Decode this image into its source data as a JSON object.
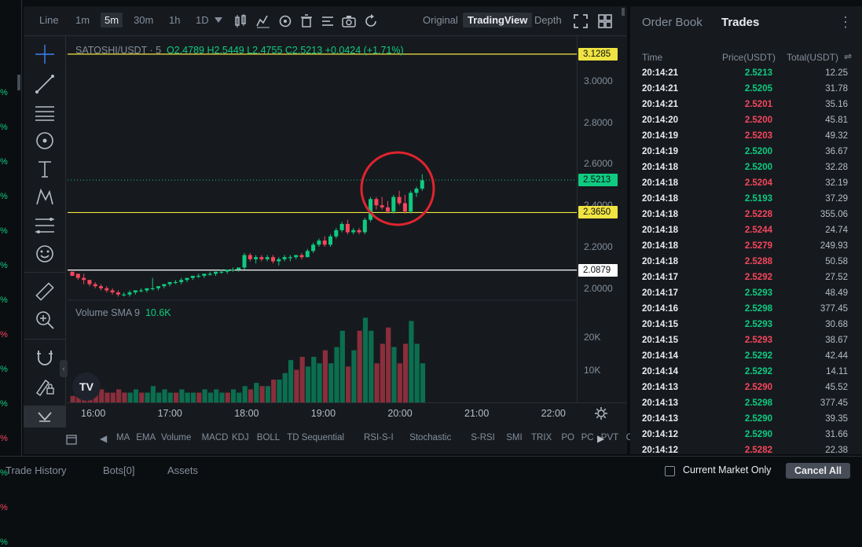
{
  "left_strip": {
    "values": [
      "%",
      "%",
      "%",
      "%",
      "%",
      "%",
      "%",
      "%",
      "%",
      "%",
      "%",
      "%",
      "%",
      "%"
    ],
    "colors": [
      "#0ecb81",
      "#0ecb81",
      "#0ecb81",
      "#0ecb81",
      "#0ecb81",
      "#0ecb81",
      "#0ecb81",
      "#f6465d",
      "#0ecb81",
      "#0ecb81",
      "#f6465d",
      "#0ecb81",
      "#f6465d",
      "#0ecb81"
    ]
  },
  "topbar": {
    "chart_types": [
      "Line"
    ],
    "timeframes": [
      "1m",
      "5m",
      "30m",
      "1h",
      "1D"
    ],
    "active_timeframe": "5m",
    "views": [
      "Original",
      "TradingView",
      "Depth"
    ],
    "active_view": "TradingView"
  },
  "legend": {
    "symbol": "SATOSHI/USDT · 5",
    "open": "O2.4789",
    "high": "H2.5449",
    "low": "L2.4755",
    "close": "C2.5213",
    "change": "+0.0424 (+1.71%)"
  },
  "volume_legend": {
    "label": "Volume SMA 9",
    "value": "10.6K"
  },
  "price_axis": {
    "ticks": [
      "3.0000",
      "2.8000",
      "2.6000",
      "2.4000",
      "2.2000",
      "2.0000"
    ],
    "tags": [
      {
        "label": "3.1285",
        "bg": "#f0e442",
        "fg": "#0b0e11"
      },
      {
        "label": "2.5213",
        "bg": "#0ecb81",
        "fg": "#0b0e11"
      },
      {
        "label": "2.3650",
        "bg": "#f0e442",
        "fg": "#0b0e11"
      },
      {
        "label": "2.0879",
        "bg": "#ffffff",
        "fg": "#0b0e11"
      }
    ],
    "volume_ticks": [
      "20K",
      "10K"
    ]
  },
  "time_axis": {
    "ticks": [
      "16:00",
      "17:00",
      "18:00",
      "19:00",
      "20:00",
      "21:00",
      "22:00"
    ]
  },
  "indicators": [
    "MA",
    "EMA",
    "Volume",
    "MACD",
    "KDJ",
    "BOLL",
    "TD Sequential",
    "RSI-S-I",
    "Stochastic",
    "S-RSI",
    "SMI",
    "TRIX",
    "PO",
    "PC",
    "PVT",
    "CC"
  ],
  "chart_data": {
    "type": "candlestick",
    "horizontal_lines": [
      3.1285,
      2.365,
      2.0879
    ],
    "last_price": 2.5213,
    "ylim": [
      1.95,
      3.2
    ],
    "candles": [
      [
        2.08,
        2.08,
        2.06,
        2.06
      ],
      [
        2.07,
        2.07,
        2.04,
        2.05
      ],
      [
        2.05,
        2.07,
        2.02,
        2.04
      ],
      [
        2.04,
        2.04,
        2.01,
        2.02
      ],
      [
        2.02,
        2.03,
        2.0,
        2.01
      ],
      [
        2.01,
        2.02,
        1.99,
        2.0
      ],
      [
        2.0,
        2.01,
        1.98,
        1.99
      ],
      [
        1.99,
        2.0,
        1.97,
        1.98
      ],
      [
        1.98,
        1.99,
        1.96,
        1.97
      ],
      [
        1.97,
        1.98,
        1.96,
        1.97
      ],
      [
        1.97,
        1.99,
        1.96,
        1.98
      ],
      [
        1.98,
        1.99,
        1.97,
        1.99
      ],
      [
        1.99,
        2.0,
        1.98,
        1.99
      ],
      [
        1.99,
        2.0,
        1.98,
        2.0
      ],
      [
        2.0,
        2.05,
        1.99,
        2.0
      ],
      [
        2.0,
        2.01,
        1.99,
        2.01
      ],
      [
        2.01,
        2.02,
        2.0,
        2.02
      ],
      [
        2.02,
        2.03,
        2.01,
        2.03
      ],
      [
        2.03,
        2.04,
        2.02,
        2.03
      ],
      [
        2.03,
        2.05,
        2.02,
        2.04
      ],
      [
        2.04,
        2.05,
        2.03,
        2.05
      ],
      [
        2.05,
        2.06,
        2.04,
        2.06
      ],
      [
        2.06,
        2.07,
        2.05,
        2.06
      ],
      [
        2.06,
        2.07,
        2.05,
        2.07
      ],
      [
        2.07,
        2.08,
        2.06,
        2.07
      ],
      [
        2.07,
        2.08,
        2.06,
        2.08
      ],
      [
        2.08,
        2.09,
        2.07,
        2.08
      ],
      [
        2.08,
        2.09,
        2.07,
        2.09
      ],
      [
        2.09,
        2.1,
        2.08,
        2.09
      ],
      [
        2.09,
        2.1,
        2.08,
        2.1
      ],
      [
        2.1,
        2.17,
        2.09,
        2.16
      ],
      [
        2.16,
        2.17,
        2.13,
        2.14
      ],
      [
        2.14,
        2.16,
        2.12,
        2.15
      ],
      [
        2.15,
        2.16,
        2.13,
        2.14
      ],
      [
        2.14,
        2.16,
        2.13,
        2.15
      ],
      [
        2.15,
        2.16,
        2.12,
        2.13
      ],
      [
        2.13,
        2.15,
        2.11,
        2.14
      ],
      [
        2.14,
        2.16,
        2.13,
        2.15
      ],
      [
        2.15,
        2.16,
        2.13,
        2.15
      ],
      [
        2.15,
        2.16,
        2.14,
        2.16
      ],
      [
        2.16,
        2.17,
        2.14,
        2.15
      ],
      [
        2.15,
        2.19,
        2.15,
        2.18
      ],
      [
        2.18,
        2.22,
        2.17,
        2.21
      ],
      [
        2.21,
        2.24,
        2.2,
        2.23
      ],
      [
        2.23,
        2.25,
        2.2,
        2.21
      ],
      [
        2.21,
        2.26,
        2.2,
        2.25
      ],
      [
        2.25,
        2.29,
        2.24,
        2.28
      ],
      [
        2.28,
        2.32,
        2.27,
        2.31
      ],
      [
        2.31,
        2.33,
        2.26,
        2.27
      ],
      [
        2.27,
        2.29,
        2.26,
        2.28
      ],
      [
        2.28,
        2.29,
        2.26,
        2.27
      ],
      [
        2.27,
        2.34,
        2.26,
        2.33
      ],
      [
        2.33,
        2.44,
        2.32,
        2.43
      ],
      [
        2.43,
        2.44,
        2.38,
        2.4
      ],
      [
        2.4,
        2.44,
        2.38,
        2.39
      ],
      [
        2.39,
        2.42,
        2.36,
        2.37
      ],
      [
        2.37,
        2.45,
        2.36,
        2.44
      ],
      [
        2.44,
        2.47,
        2.4,
        2.41
      ],
      [
        2.41,
        2.45,
        2.36,
        2.37
      ],
      [
        2.37,
        2.47,
        2.36,
        2.46
      ],
      [
        2.46,
        2.49,
        2.44,
        2.48
      ],
      [
        2.48,
        2.55,
        2.47,
        2.52
      ]
    ],
    "volume": [
      2,
      3,
      3,
      5,
      6,
      4,
      3,
      3,
      4,
      3,
      3,
      4,
      3,
      3,
      5,
      3,
      4,
      3,
      3,
      4,
      3,
      3,
      3,
      4,
      3,
      4,
      3,
      3,
      4,
      3,
      5,
      4,
      6,
      5,
      5,
      7,
      7,
      9,
      13,
      10,
      14,
      11,
      14,
      12,
      16,
      12,
      17,
      22,
      11,
      16,
      22,
      26,
      22,
      12,
      18,
      23,
      17,
      12,
      18,
      25,
      18,
      12
    ],
    "volume_colors": [
      "down",
      "down",
      "down",
      "down",
      "down",
      "down",
      "down",
      "down",
      "down",
      "down",
      "up",
      "up",
      "down",
      "up",
      "up",
      "up",
      "up",
      "up",
      "down",
      "up",
      "up",
      "up",
      "down",
      "up",
      "up",
      "up",
      "up",
      "down",
      "up",
      "up",
      "up",
      "down",
      "up",
      "down",
      "up",
      "down",
      "up",
      "up",
      "up",
      "down",
      "down",
      "up",
      "up",
      "up",
      "down",
      "up",
      "up",
      "up",
      "down",
      "up",
      "down",
      "up",
      "up",
      "down",
      "down",
      "down",
      "up",
      "down",
      "down",
      "up",
      "up",
      "up"
    ],
    "volume_ylim": [
      0,
      28
    ]
  },
  "right_panel": {
    "tabs": [
      "Order Book",
      "Trades"
    ],
    "active_tab": "Trades",
    "columns": [
      "Time",
      "Price(USDT)",
      "Total(USDT)"
    ],
    "trades": [
      {
        "time": "20:14:21",
        "price": "2.5213",
        "total": "12.25",
        "side": "buy"
      },
      {
        "time": "20:14:21",
        "price": "2.5205",
        "total": "31.78",
        "side": "buy"
      },
      {
        "time": "20:14:21",
        "price": "2.5201",
        "total": "35.16",
        "side": "sell"
      },
      {
        "time": "20:14:20",
        "price": "2.5200",
        "total": "45.81",
        "side": "sell"
      },
      {
        "time": "20:14:19",
        "price": "2.5203",
        "total": "49.32",
        "side": "sell"
      },
      {
        "time": "20:14:19",
        "price": "2.5200",
        "total": "36.67",
        "side": "buy"
      },
      {
        "time": "20:14:18",
        "price": "2.5200",
        "total": "32.28",
        "side": "buy"
      },
      {
        "time": "20:14:18",
        "price": "2.5204",
        "total": "32.19",
        "side": "sell"
      },
      {
        "time": "20:14:18",
        "price": "2.5193",
        "total": "37.29",
        "side": "buy"
      },
      {
        "time": "20:14:18",
        "price": "2.5228",
        "total": "355.06",
        "side": "sell"
      },
      {
        "time": "20:14:18",
        "price": "2.5244",
        "total": "24.74",
        "side": "sell"
      },
      {
        "time": "20:14:18",
        "price": "2.5279",
        "total": "249.93",
        "side": "sell"
      },
      {
        "time": "20:14:18",
        "price": "2.5288",
        "total": "50.58",
        "side": "sell"
      },
      {
        "time": "20:14:17",
        "price": "2.5292",
        "total": "27.52",
        "side": "sell"
      },
      {
        "time": "20:14:17",
        "price": "2.5293",
        "total": "48.49",
        "side": "buy"
      },
      {
        "time": "20:14:16",
        "price": "2.5298",
        "total": "377.45",
        "side": "buy"
      },
      {
        "time": "20:14:15",
        "price": "2.5293",
        "total": "30.68",
        "side": "buy"
      },
      {
        "time": "20:14:15",
        "price": "2.5293",
        "total": "38.67",
        "side": "sell"
      },
      {
        "time": "20:14:14",
        "price": "2.5292",
        "total": "42.44",
        "side": "buy"
      },
      {
        "time": "20:14:14",
        "price": "2.5292",
        "total": "14.11",
        "side": "buy"
      },
      {
        "time": "20:14:13",
        "price": "2.5290",
        "total": "45.52",
        "side": "sell"
      },
      {
        "time": "20:14:13",
        "price": "2.5298",
        "total": "377.45",
        "side": "buy"
      },
      {
        "time": "20:14:13",
        "price": "2.5290",
        "total": "39.35",
        "side": "buy"
      },
      {
        "time": "20:14:12",
        "price": "2.5290",
        "total": "31.66",
        "side": "buy"
      },
      {
        "time": "20:14:12",
        "price": "2.5282",
        "total": "22.38",
        "side": "sell"
      }
    ]
  },
  "bottom_bar": {
    "tabs": [
      "Trade History",
      "Bots[0]",
      "Assets"
    ],
    "checkbox_label": "Current Market Only",
    "cancel_all": "Cancel All"
  },
  "colors": {
    "up": "#0ecb81",
    "down": "#f6465d",
    "up_vol": "#0b6e4f",
    "down_vol": "#8a2e3b",
    "annotation": "#e0242f"
  }
}
